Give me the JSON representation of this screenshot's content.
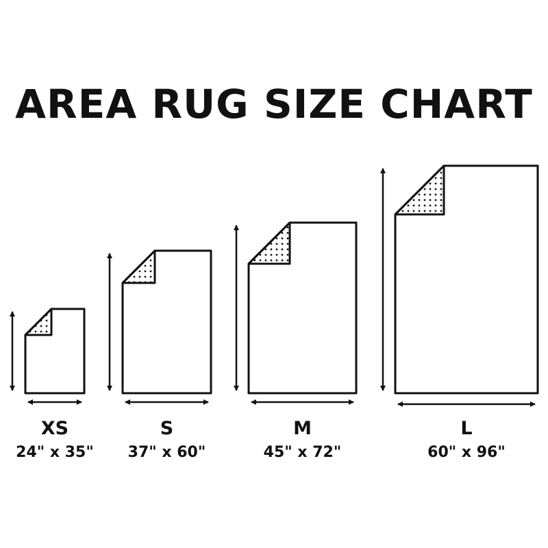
{
  "title": "AREA RUG SIZE CHART",
  "colors": {
    "ink": "#111111",
    "background": "#ffffff"
  },
  "rugs": [
    {
      "size": "XS",
      "dimensions": "24\" x 35\"",
      "width_in": 24,
      "length_in": 35
    },
    {
      "size": "S",
      "dimensions": "37\" x 60\"",
      "width_in": 37,
      "length_in": 60
    },
    {
      "size": "M",
      "dimensions": "45\" x 72\"",
      "width_in": 45,
      "length_in": 72
    },
    {
      "size": "L",
      "dimensions": "60\" x 96\"",
      "width_in": 60,
      "length_in": 96
    }
  ]
}
